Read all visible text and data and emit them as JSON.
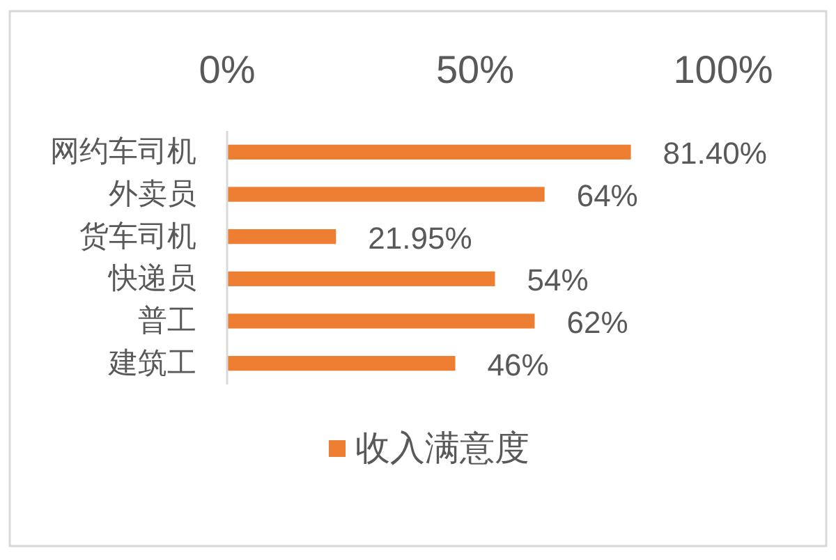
{
  "chart_data": {
    "type": "bar",
    "orientation": "horizontal",
    "categories": [
      "网约车司机",
      "外卖员",
      "货车司机",
      "快递员",
      "普工",
      "建筑工"
    ],
    "series": [
      {
        "name": "收入满意度",
        "color": "#ed7d31",
        "values": [
          81.4,
          64,
          21.95,
          54,
          62,
          46
        ],
        "value_labels": [
          "81.40%",
          "64%",
          "21.95%",
          "54%",
          "62%",
          "46%"
        ]
      }
    ],
    "xlim": [
      0,
      100
    ],
    "xticks": [
      {
        "value": 0,
        "label": "0%"
      },
      {
        "value": 50,
        "label": "50%"
      },
      {
        "value": 100,
        "label": "100%"
      }
    ],
    "legend": "bottom"
  }
}
